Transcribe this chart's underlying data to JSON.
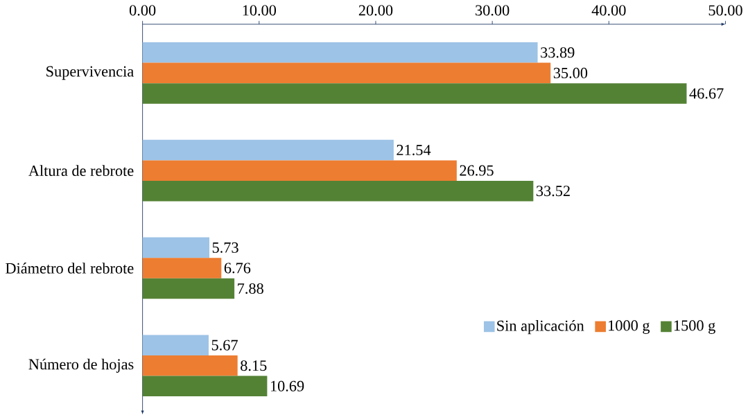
{
  "chart_data": {
    "type": "bar",
    "orientation": "horizontal",
    "categories": [
      "Supervivencia",
      "Altura de rebrote",
      "Diámetro del rebrote",
      "Número de hojas"
    ],
    "series": [
      {
        "name": "Sin aplicación",
        "color": "#9dc3e6",
        "values": [
          33.89,
          21.54,
          5.73,
          5.67
        ],
        "value_labels": [
          "33.89",
          "21.54",
          "5.73",
          "5.67"
        ]
      },
      {
        "name": "1000 g",
        "color": "#ed7d31",
        "values": [
          35.0,
          26.95,
          6.76,
          8.15
        ],
        "value_labels": [
          "35.00",
          "26.95",
          "6.76",
          "8.15"
        ]
      },
      {
        "name": "1500 g",
        "color": "#548235",
        "values": [
          46.67,
          33.52,
          7.88,
          10.69
        ],
        "value_labels": [
          "46.67",
          "33.52",
          "7.88",
          "10.69"
        ]
      }
    ],
    "xlim": [
      0,
      50
    ],
    "xticks": [
      {
        "value": 0,
        "label": "0.00"
      },
      {
        "value": 10,
        "label": "10.00"
      },
      {
        "value": 20,
        "label": "20.00"
      },
      {
        "value": 30,
        "label": "30.00"
      },
      {
        "value": 40,
        "label": "40.00"
      },
      {
        "value": 50,
        "label": "50.00"
      }
    ],
    "legend": "bottom right",
    "grid": false
  }
}
